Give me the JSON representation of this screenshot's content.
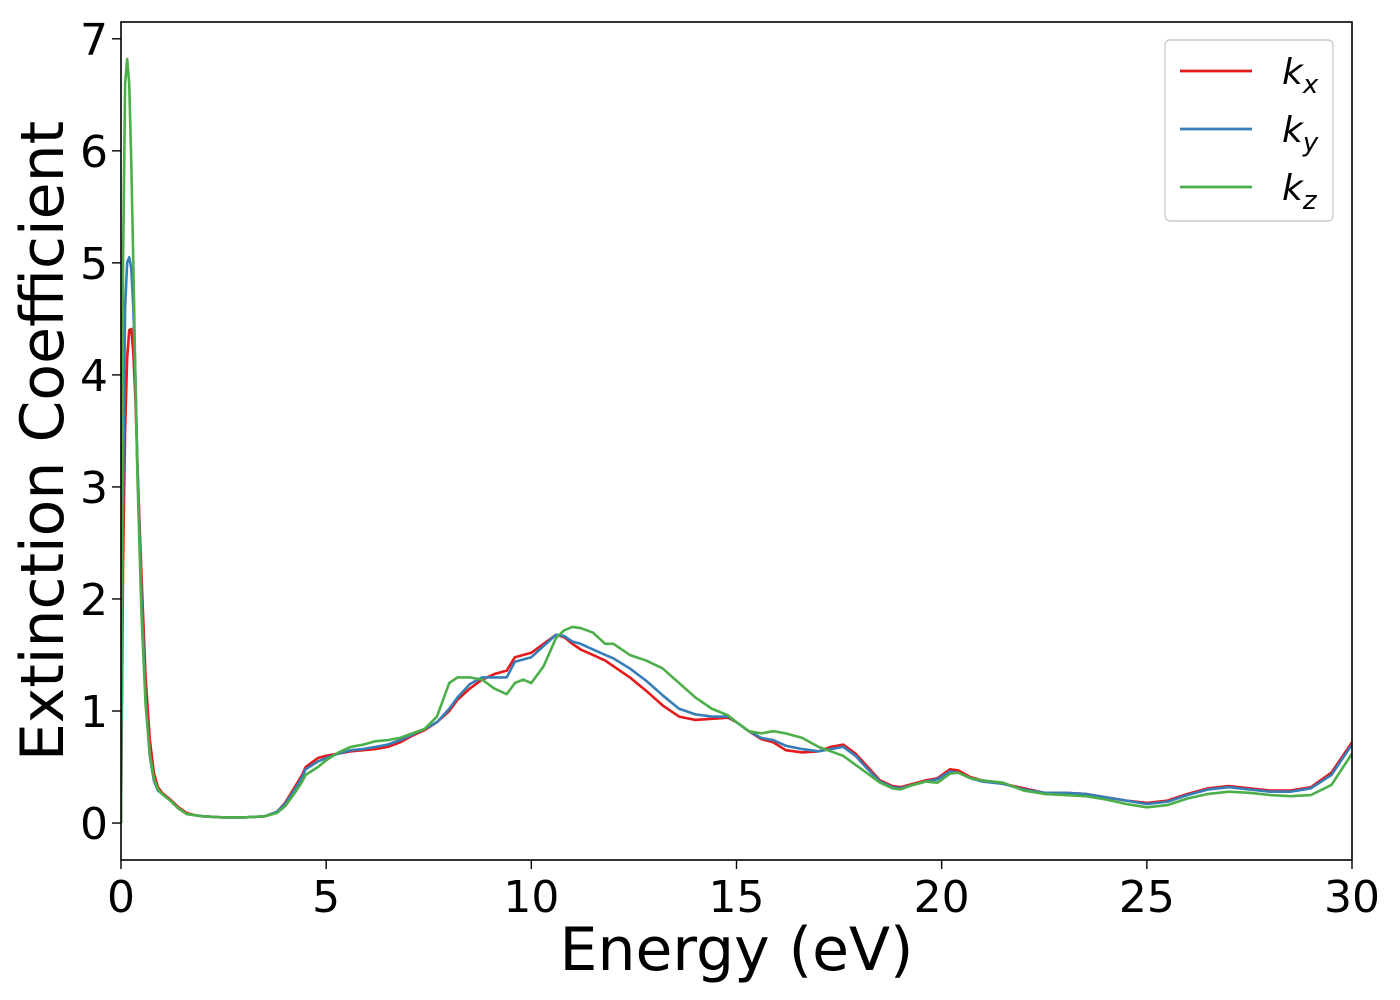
{
  "chart_data": {
    "type": "line",
    "title": "",
    "xlabel": "Energy (eV)",
    "ylabel": "Extinction Coefficient",
    "xlim": [
      0,
      30
    ],
    "ylim": [
      -0.33,
      7.15
    ],
    "xticks": [
      0,
      5,
      10,
      15,
      20,
      25,
      30
    ],
    "yticks": [
      0,
      1,
      2,
      3,
      4,
      5,
      6,
      7
    ],
    "grid": false,
    "legend_position": "top-right",
    "series": [
      {
        "name": "k",
        "subscript": "x",
        "color": "#e41a1c",
        "x": [
          0,
          0.05,
          0.1,
          0.15,
          0.2,
          0.25,
          0.3,
          0.35,
          0.4,
          0.5,
          0.6,
          0.7,
          0.8,
          0.9,
          1.0,
          1.1,
          1.2,
          1.4,
          1.6,
          1.8,
          2.0,
          2.5,
          3.0,
          3.5,
          3.8,
          4.0,
          4.2,
          4.4,
          4.5,
          4.8,
          5.0,
          5.3,
          5.6,
          5.9,
          6.2,
          6.5,
          6.8,
          7.1,
          7.4,
          7.7,
          8.0,
          8.2,
          8.5,
          8.8,
          9.1,
          9.4,
          9.6,
          9.8,
          10.0,
          10.3,
          10.6,
          10.8,
          11.0,
          11.2,
          11.5,
          11.8,
          12.0,
          12.4,
          12.8,
          13.2,
          13.6,
          14.0,
          14.4,
          14.8,
          15.0,
          15.3,
          15.6,
          15.9,
          16.2,
          16.6,
          17.0,
          17.3,
          17.6,
          17.9,
          18.2,
          18.5,
          18.8,
          19.0,
          19.3,
          19.6,
          19.9,
          20.2,
          20.4,
          20.7,
          21.0,
          21.5,
          22.0,
          22.5,
          23.0,
          23.5,
          24.0,
          24.5,
          25.0,
          25.5,
          26.0,
          26.5,
          27.0,
          27.5,
          28.0,
          28.5,
          29.0,
          29.5,
          30.0
        ],
        "y": [
          0,
          2.3,
          3.5,
          4.15,
          4.4,
          4.41,
          4.2,
          3.8,
          3.2,
          2.2,
          1.3,
          0.75,
          0.45,
          0.32,
          0.27,
          0.24,
          0.21,
          0.14,
          0.09,
          0.07,
          0.06,
          0.05,
          0.05,
          0.06,
          0.1,
          0.18,
          0.3,
          0.42,
          0.5,
          0.58,
          0.6,
          0.62,
          0.64,
          0.65,
          0.66,
          0.68,
          0.72,
          0.78,
          0.83,
          0.9,
          1.0,
          1.1,
          1.2,
          1.28,
          1.33,
          1.36,
          1.48,
          1.5,
          1.52,
          1.6,
          1.68,
          1.66,
          1.6,
          1.55,
          1.5,
          1.45,
          1.4,
          1.3,
          1.18,
          1.05,
          0.95,
          0.92,
          0.93,
          0.94,
          0.9,
          0.82,
          0.75,
          0.72,
          0.65,
          0.63,
          0.64,
          0.68,
          0.7,
          0.62,
          0.5,
          0.38,
          0.33,
          0.32,
          0.35,
          0.38,
          0.4,
          0.48,
          0.47,
          0.41,
          0.38,
          0.35,
          0.31,
          0.27,
          0.27,
          0.26,
          0.23,
          0.2,
          0.18,
          0.2,
          0.26,
          0.31,
          0.33,
          0.31,
          0.29,
          0.29,
          0.32,
          0.45,
          0.72
        ]
      },
      {
        "name": "k",
        "subscript": "y",
        "color": "#377eb8",
        "x": [
          0,
          0.05,
          0.1,
          0.15,
          0.2,
          0.25,
          0.3,
          0.35,
          0.4,
          0.5,
          0.6,
          0.7,
          0.8,
          0.9,
          1.0,
          1.1,
          1.2,
          1.4,
          1.6,
          1.8,
          2.0,
          2.5,
          3.0,
          3.5,
          3.8,
          4.0,
          4.2,
          4.4,
          4.5,
          4.8,
          5.0,
          5.3,
          5.6,
          5.9,
          6.2,
          6.5,
          6.8,
          7.1,
          7.4,
          7.7,
          8.0,
          8.2,
          8.5,
          8.8,
          9.1,
          9.4,
          9.6,
          9.8,
          10.0,
          10.3,
          10.6,
          10.8,
          11.0,
          11.2,
          11.5,
          11.8,
          12.0,
          12.4,
          12.8,
          13.2,
          13.6,
          14.0,
          14.4,
          14.8,
          15.0,
          15.3,
          15.6,
          15.9,
          16.2,
          16.6,
          17.0,
          17.3,
          17.6,
          17.9,
          18.2,
          18.5,
          18.8,
          19.0,
          19.3,
          19.6,
          19.9,
          20.2,
          20.4,
          20.7,
          21.0,
          21.5,
          22.0,
          22.5,
          23.0,
          23.5,
          24.0,
          24.5,
          25.0,
          25.5,
          26.0,
          26.5,
          27.0,
          27.5,
          28.0,
          28.5,
          29.0,
          29.5,
          30.0
        ],
        "y": [
          0,
          3.0,
          4.6,
          5.0,
          5.05,
          4.95,
          4.6,
          4.0,
          3.2,
          2.0,
          1.1,
          0.6,
          0.38,
          0.29,
          0.26,
          0.23,
          0.2,
          0.13,
          0.08,
          0.07,
          0.06,
          0.05,
          0.05,
          0.06,
          0.1,
          0.17,
          0.28,
          0.4,
          0.48,
          0.55,
          0.58,
          0.62,
          0.65,
          0.66,
          0.68,
          0.7,
          0.74,
          0.79,
          0.84,
          0.9,
          1.02,
          1.12,
          1.24,
          1.3,
          1.3,
          1.3,
          1.44,
          1.46,
          1.48,
          1.58,
          1.68,
          1.67,
          1.62,
          1.6,
          1.55,
          1.5,
          1.47,
          1.38,
          1.27,
          1.14,
          1.02,
          0.97,
          0.95,
          0.95,
          0.9,
          0.82,
          0.76,
          0.74,
          0.69,
          0.66,
          0.64,
          0.66,
          0.68,
          0.6,
          0.48,
          0.37,
          0.32,
          0.31,
          0.34,
          0.37,
          0.39,
          0.46,
          0.45,
          0.4,
          0.37,
          0.35,
          0.3,
          0.27,
          0.27,
          0.26,
          0.23,
          0.2,
          0.17,
          0.19,
          0.25,
          0.3,
          0.32,
          0.3,
          0.28,
          0.28,
          0.31,
          0.43,
          0.7
        ]
      },
      {
        "name": "k",
        "subscript": "z",
        "color": "#4daf4a",
        "x": [
          0,
          0.05,
          0.1,
          0.15,
          0.2,
          0.25,
          0.3,
          0.35,
          0.4,
          0.5,
          0.6,
          0.7,
          0.8,
          0.9,
          1.0,
          1.1,
          1.2,
          1.4,
          1.6,
          1.8,
          2.0,
          2.5,
          3.0,
          3.5,
          3.8,
          4.0,
          4.2,
          4.4,
          4.5,
          4.8,
          5.0,
          5.3,
          5.6,
          5.9,
          6.2,
          6.5,
          6.8,
          7.1,
          7.4,
          7.7,
          8.0,
          8.2,
          8.5,
          8.8,
          9.1,
          9.4,
          9.6,
          9.8,
          10.0,
          10.3,
          10.6,
          10.8,
          11.0,
          11.2,
          11.5,
          11.8,
          12.0,
          12.4,
          12.8,
          13.2,
          13.6,
          14.0,
          14.4,
          14.8,
          15.0,
          15.3,
          15.6,
          15.9,
          16.2,
          16.6,
          17.0,
          17.3,
          17.6,
          17.9,
          18.2,
          18.5,
          18.8,
          19.0,
          19.3,
          19.6,
          19.9,
          20.2,
          20.4,
          20.7,
          21.0,
          21.5,
          22.0,
          22.5,
          23.0,
          23.5,
          24.0,
          24.5,
          25.0,
          25.5,
          26.0,
          26.5,
          27.0,
          27.5,
          28.0,
          28.5,
          29.0,
          29.5,
          30.0
        ],
        "y": [
          0,
          5.0,
          6.6,
          6.82,
          6.6,
          5.9,
          5.0,
          4.0,
          3.1,
          1.85,
          1.05,
          0.62,
          0.4,
          0.3,
          0.26,
          0.23,
          0.2,
          0.13,
          0.08,
          0.07,
          0.06,
          0.05,
          0.05,
          0.06,
          0.09,
          0.15,
          0.25,
          0.36,
          0.43,
          0.5,
          0.56,
          0.63,
          0.68,
          0.7,
          0.73,
          0.74,
          0.76,
          0.8,
          0.84,
          0.95,
          1.25,
          1.3,
          1.3,
          1.28,
          1.2,
          1.15,
          1.25,
          1.28,
          1.25,
          1.4,
          1.65,
          1.72,
          1.75,
          1.74,
          1.7,
          1.6,
          1.6,
          1.5,
          1.45,
          1.38,
          1.25,
          1.12,
          1.02,
          0.96,
          0.9,
          0.82,
          0.8,
          0.82,
          0.8,
          0.76,
          0.68,
          0.64,
          0.6,
          0.52,
          0.44,
          0.36,
          0.31,
          0.3,
          0.34,
          0.37,
          0.36,
          0.44,
          0.45,
          0.4,
          0.38,
          0.36,
          0.29,
          0.26,
          0.25,
          0.24,
          0.21,
          0.17,
          0.14,
          0.16,
          0.22,
          0.26,
          0.28,
          0.27,
          0.25,
          0.24,
          0.25,
          0.34,
          0.62
        ]
      }
    ]
  }
}
